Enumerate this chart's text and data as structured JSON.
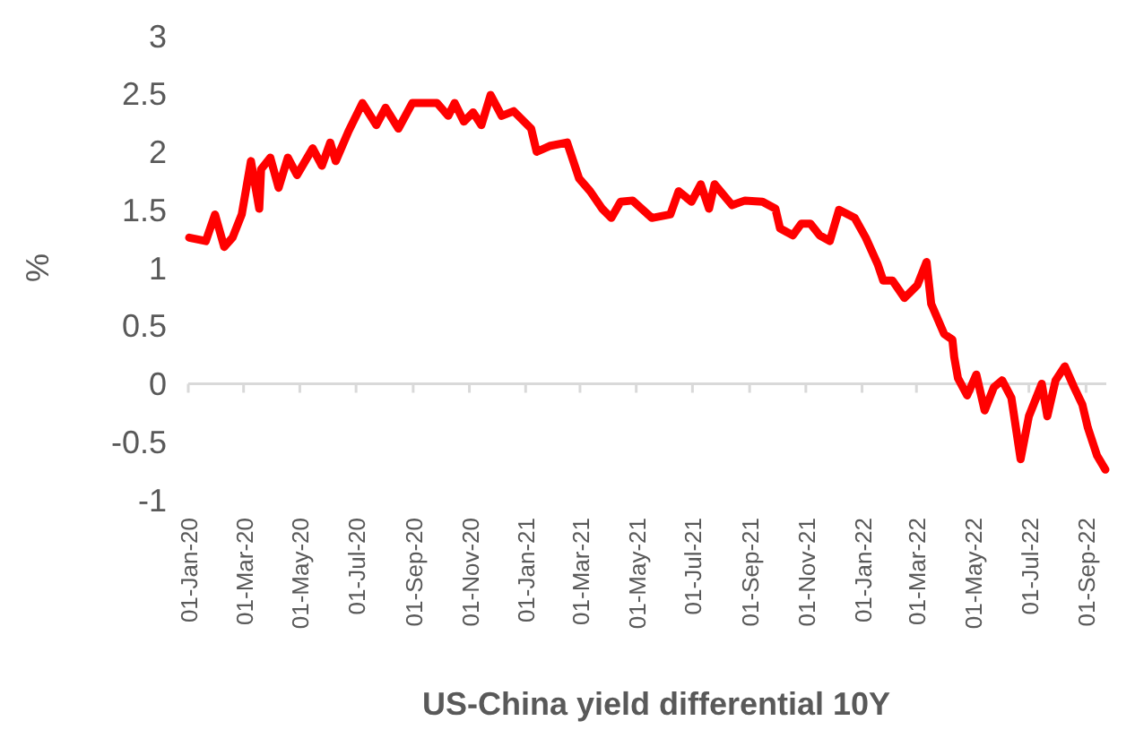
{
  "chart_data": {
    "type": "line",
    "xlabel": "US-China yield differential 10Y",
    "ylabel": "%",
    "x": [
      "2020-01-02",
      "2020-01-20",
      "2020-01-30",
      "2020-02-09",
      "2020-02-18",
      "2020-02-28",
      "2020-03-09",
      "2020-03-18",
      "2020-03-20",
      "2020-03-30",
      "2020-04-08",
      "2020-04-18",
      "2020-04-28",
      "2020-05-15",
      "2020-05-25",
      "2020-06-03",
      "2020-06-09",
      "2020-06-23",
      "2020-07-08",
      "2020-07-23",
      "2020-08-02",
      "2020-08-16",
      "2020-08-31",
      "2020-09-27",
      "2020-10-09",
      "2020-10-16",
      "2020-10-26",
      "2020-11-05",
      "2020-11-14",
      "2020-11-24",
      "2020-12-06",
      "2020-12-19",
      "2021-01-07",
      "2021-01-13",
      "2021-01-27",
      "2021-02-15",
      "2021-02-28",
      "2021-03-12",
      "2021-03-25",
      "2021-04-04",
      "2021-04-14",
      "2021-04-27",
      "2021-05-18",
      "2021-06-07",
      "2021-06-16",
      "2021-06-30",
      "2021-07-10",
      "2021-07-19",
      "2021-07-25",
      "2021-08-13",
      "2021-08-27",
      "2021-09-15",
      "2021-09-29",
      "2021-10-04",
      "2021-10-18",
      "2021-10-27",
      "2021-11-06",
      "2021-11-16",
      "2021-11-27",
      "2021-12-07",
      "2021-12-24",
      "2022-01-05",
      "2022-01-18",
      "2022-01-24",
      "2022-02-03",
      "2022-02-16",
      "2022-03-02",
      "2022-03-12",
      "2022-03-17",
      "2022-03-31",
      "2022-04-09",
      "2022-04-11",
      "2022-04-15",
      "2022-04-25",
      "2022-05-05",
      "2022-05-14",
      "2022-05-24",
      "2022-06-02",
      "2022-06-12",
      "2022-06-22",
      "2022-07-01",
      "2022-07-15",
      "2022-07-21",
      "2022-07-30",
      "2022-08-09",
      "2022-08-19",
      "2022-08-28",
      "2022-09-03",
      "2022-09-13",
      "2022-09-22"
    ],
    "series": [
      {
        "color": "#ff0000",
        "values": [
          1.26,
          1.23,
          1.46,
          1.18,
          1.26,
          1.46,
          1.92,
          1.51,
          1.85,
          1.95,
          1.69,
          1.95,
          1.8,
          2.03,
          1.88,
          2.08,
          1.92,
          2.18,
          2.42,
          2.23,
          2.38,
          2.2,
          2.42,
          2.42,
          2.31,
          2.42,
          2.26,
          2.34,
          2.23,
          2.49,
          2.31,
          2.35,
          2.2,
          2.0,
          2.05,
          2.08,
          1.77,
          1.66,
          1.51,
          1.43,
          1.57,
          1.58,
          1.43,
          1.46,
          1.66,
          1.57,
          1.72,
          1.51,
          1.72,
          1.54,
          1.58,
          1.57,
          1.51,
          1.34,
          1.28,
          1.38,
          1.38,
          1.28,
          1.23,
          1.5,
          1.43,
          1.26,
          1.03,
          0.89,
          0.89,
          0.74,
          0.85,
          1.05,
          0.69,
          0.43,
          0.38,
          0.23,
          0.05,
          -0.1,
          0.08,
          -0.23,
          -0.03,
          0.03,
          -0.12,
          -0.65,
          -0.28,
          0,
          -0.28,
          0.03,
          0.15,
          -0.03,
          -0.18,
          -0.38,
          -0.62,
          -0.74
        ]
      }
    ],
    "xlim": [
      "2020-01-01",
      "2022-09-23"
    ],
    "xticks": [
      {
        "value": "2020-01-01",
        "label": "01-Jan-20"
      },
      {
        "value": "2020-03-01",
        "label": "01-Mar-20"
      },
      {
        "value": "2020-05-01",
        "label": "01-May-20"
      },
      {
        "value": "2020-07-01",
        "label": "01-Jul-20"
      },
      {
        "value": "2020-09-01",
        "label": "01-Sep-20"
      },
      {
        "value": "2020-11-01",
        "label": "01-Nov-20"
      },
      {
        "value": "2021-01-01",
        "label": "01-Jan-21"
      },
      {
        "value": "2021-03-01",
        "label": "01-Mar-21"
      },
      {
        "value": "2021-05-01",
        "label": "01-May-21"
      },
      {
        "value": "2021-07-01",
        "label": "01-Jul-21"
      },
      {
        "value": "2021-09-01",
        "label": "01-Sep-21"
      },
      {
        "value": "2021-11-01",
        "label": "01-Nov-21"
      },
      {
        "value": "2022-01-01",
        "label": "01-Jan-22"
      },
      {
        "value": "2022-03-01",
        "label": "01-Mar-22"
      },
      {
        "value": "2022-05-01",
        "label": "01-May-22"
      },
      {
        "value": "2022-07-01",
        "label": "01-Jul-22"
      },
      {
        "value": "2022-09-01",
        "label": "01-Sep-22"
      }
    ],
    "ylim": [
      -1,
      3
    ],
    "yticks": [
      -1,
      -0.5,
      0,
      0.5,
      1,
      1.5,
      2,
      2.5,
      3
    ],
    "marker": "none",
    "line_style": "solid"
  }
}
